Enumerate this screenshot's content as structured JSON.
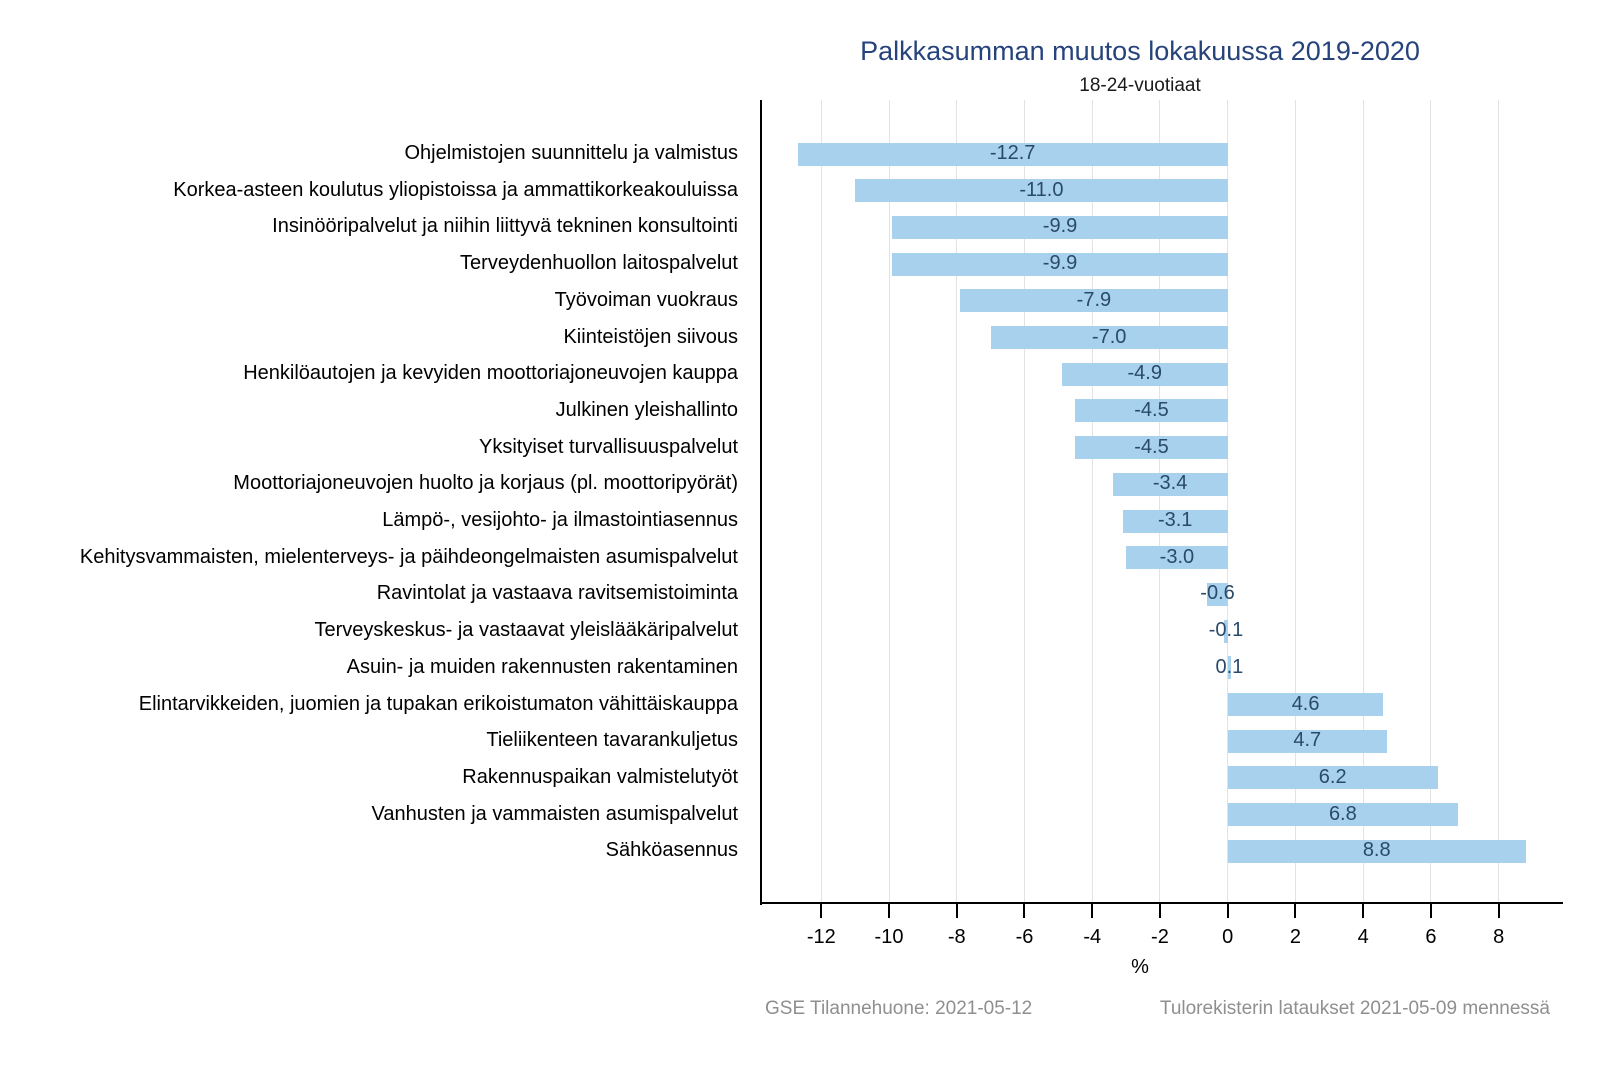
{
  "chart_data": {
    "type": "bar",
    "orientation": "horizontal",
    "title": "Palkkasumman muutos lokakuussa 2019-2020",
    "subtitle": "18-24-vuotiaat",
    "xlabel": "%",
    "categories": [
      "Ohjelmistojen suunnittelu ja valmistus",
      "Korkea-asteen koulutus yliopistoissa ja ammattikorkeakouluissa",
      "Insinööripalvelut ja niihin liittyvä tekninen konsultointi",
      "Terveydenhuollon laitospalvelut",
      "Työvoiman vuokraus",
      "Kiinteistöjen siivous",
      "Henkilöautojen ja kevyiden moottoriajoneuvojen kauppa",
      "Julkinen yleishallinto",
      "Yksityiset turvallisuuspalvelut",
      "Moottoriajoneuvojen huolto ja korjaus (pl. moottoripyörät)",
      "Lämpö-, vesijohto- ja ilmastointiasennus",
      "Kehitysvammaisten, mielenterveys- ja päihdeongelmaisten asumispalvelut",
      "Ravintolat ja vastaava ravitsemistoiminta",
      "Terveyskeskus- ja vastaavat yleislääkäripalvelut",
      "Asuin- ja muiden rakennusten rakentaminen",
      "Elintarvikkeiden, juomien ja tupakan erikoistumaton vähittäiskauppa",
      "Tieliikenteen tavarankuljetus",
      "Rakennuspaikan valmistelutyöt",
      "Vanhusten ja vammaisten asumispalvelut",
      "Sähköasennus"
    ],
    "values": [
      -12.7,
      -11.0,
      -9.9,
      -9.9,
      -7.9,
      -7.0,
      -4.9,
      -4.5,
      -4.5,
      -3.4,
      -3.1,
      -3.0,
      -0.6,
      -0.1,
      0.1,
      4.6,
      4.7,
      6.2,
      6.8,
      8.8
    ],
    "value_labels": [
      "-12.7",
      "-11.0",
      "-9.9",
      "-9.9",
      "-7.9",
      "-7.0",
      "-4.9",
      "-4.5",
      "-4.5",
      "-3.4",
      "-3.1",
      "-3.0",
      "-0.6",
      "-0.1",
      "0.1",
      "4.6",
      "4.7",
      "6.2",
      "6.8",
      "8.8"
    ],
    "xlim": [
      -13.75,
      9.9
    ],
    "xticks": [
      -12,
      -10,
      -8,
      -6,
      -4,
      -2,
      0,
      2,
      4,
      6,
      8
    ],
    "grid": "vertical-light-gray",
    "legend": "none",
    "colors": {
      "bar": "#A8D1ED",
      "value_label": "#2A4A6B",
      "title": "#26437C",
      "subtitle": "#1A1A1A",
      "category_label": "#000000",
      "axis": "#000000",
      "gridline": "#E3E3E3",
      "footer": "#8F8F8F"
    }
  },
  "footer": {
    "left": "GSE Tilannehuone: 2021-05-12",
    "right": "Tulorekisterin lataukset 2021-05-09 mennessä"
  }
}
